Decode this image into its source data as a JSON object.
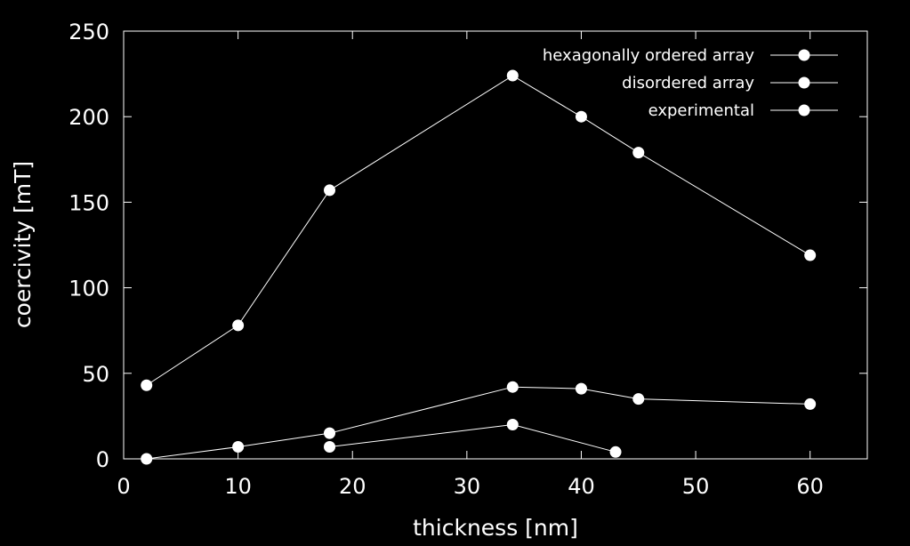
{
  "chart_data": {
    "type": "line",
    "title": "",
    "xlabel": "thickness [nm]",
    "ylabel": "coercivity [mT]",
    "xlim": [
      0,
      65
    ],
    "ylim": [
      0,
      250
    ],
    "xticks": [
      0,
      10,
      20,
      30,
      40,
      50,
      60
    ],
    "yticks": [
      0,
      50,
      100,
      150,
      200,
      250
    ],
    "grid": false,
    "legend_position": "top-right",
    "colors": {
      "background": "#000000",
      "foreground": "#ffffff"
    },
    "series": [
      {
        "name": "hexagonally ordered array",
        "x": [
          2,
          10,
          18,
          34,
          40,
          45,
          60
        ],
        "y": [
          43,
          78,
          157,
          224,
          200,
          179,
          119
        ]
      },
      {
        "name": "disordered array",
        "x": [
          2,
          10,
          18,
          34,
          40,
          45,
          60
        ],
        "y": [
          0,
          7,
          15,
          42,
          41,
          35,
          32
        ]
      },
      {
        "name": "experimental",
        "x": [
          18,
          34,
          43
        ],
        "y": [
          7,
          20,
          4
        ]
      }
    ]
  }
}
